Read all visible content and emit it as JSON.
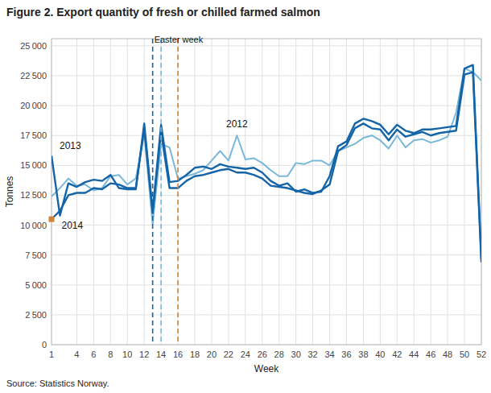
{
  "chart_data": {
    "type": "line",
    "title": "Figure 2. Export quantity of fresh or chilled farmed salmon",
    "xlabel": "Week",
    "ylabel": "Tonnes",
    "source": "Source: Statistics Norway.",
    "x": [
      1,
      2,
      3,
      4,
      5,
      6,
      7,
      8,
      9,
      10,
      11,
      12,
      13,
      14,
      15,
      16,
      17,
      18,
      19,
      20,
      21,
      22,
      23,
      24,
      25,
      26,
      27,
      28,
      29,
      30,
      31,
      32,
      33,
      34,
      35,
      36,
      37,
      38,
      39,
      40,
      41,
      42,
      43,
      44,
      45,
      46,
      47,
      48,
      49,
      50,
      51,
      52
    ],
    "series": [
      {
        "name": "2012",
        "color": "#7ab8d9",
        "values": [
          12400,
          13100,
          13900,
          13300,
          13400,
          12900,
          13100,
          14100,
          14200,
          13400,
          13900,
          17600,
          10100,
          16800,
          16500,
          13900,
          14100,
          14300,
          14600,
          15400,
          16200,
          15400,
          17500,
          15500,
          15600,
          15200,
          14600,
          14100,
          14100,
          15200,
          15100,
          15400,
          15400,
          15000,
          16200,
          16500,
          16800,
          17300,
          17500,
          17100,
          16400,
          17500,
          16500,
          17100,
          17200,
          16900,
          17100,
          17400,
          19400,
          23100,
          22800,
          22100
        ]
      },
      {
        "name": "2013",
        "color": "#1464a8",
        "values": [
          15800,
          10800,
          13500,
          13200,
          13600,
          13800,
          13700,
          14200,
          13100,
          13000,
          13000,
          18500,
          11200,
          18400,
          13600,
          13700,
          14200,
          14800,
          14900,
          14700,
          15100,
          14900,
          14800,
          14700,
          14800,
          14400,
          13700,
          13300,
          13500,
          12800,
          13000,
          12700,
          12800,
          14100,
          16600,
          17000,
          18500,
          18900,
          18700,
          18400,
          17600,
          18400,
          17900,
          17700,
          18000,
          18000,
          18100,
          18200,
          18300,
          23100,
          23400,
          7200
        ]
      },
      {
        "name": "2014",
        "color": "#1464a8",
        "values": [
          10500,
          11200,
          12500,
          12700,
          12700,
          13100,
          13000,
          13500,
          13400,
          13100,
          13100,
          18100,
          11000,
          17800,
          13100,
          13100,
          13700,
          14100,
          14200,
          14400,
          14600,
          14700,
          14400,
          14400,
          14200,
          13900,
          13300,
          13200,
          13100,
          12900,
          12700,
          12600,
          12900,
          13400,
          16200,
          16700,
          18100,
          18500,
          18100,
          18000,
          17100,
          18000,
          17400,
          17600,
          17800,
          17500,
          17700,
          17800,
          17900,
          22600,
          22800,
          6900
        ]
      }
    ],
    "vlines": [
      {
        "x": 13,
        "color": "#1464a8",
        "line_style": "dashed"
      },
      {
        "x": 14,
        "color": "#7ab8d9",
        "line_style": "dashed"
      },
      {
        "x": 16,
        "color": "#d4813a",
        "line_style": "dashed"
      }
    ],
    "highlight": {
      "series": "2014",
      "x": 1,
      "color": "#d4813a",
      "marker": "square"
    },
    "annotations": [
      {
        "text": "Easter week",
        "x": 13,
        "y": 25000
      }
    ],
    "xlim": [
      1,
      52
    ],
    "ylim": [
      0,
      25600
    ],
    "xticks": [
      1,
      4,
      6,
      8,
      10,
      12,
      14,
      16,
      18,
      20,
      22,
      24,
      26,
      28,
      30,
      32,
      34,
      36,
      38,
      40,
      42,
      44,
      46,
      48,
      50,
      52
    ],
    "yticks": [
      0,
      {
        "value": 2500,
        "label": "2 500"
      },
      {
        "value": 5000,
        "label": "5 000"
      },
      {
        "value": 7500,
        "label": "7 500"
      },
      {
        "value": 10000,
        "label": "10 000"
      },
      {
        "value": 12500,
        "label": "12 500"
      },
      {
        "value": 15000,
        "label": "15 000"
      },
      {
        "value": 17500,
        "label": "17 500"
      },
      {
        "value": 20000,
        "label": "20 000"
      },
      {
        "value": 22500,
        "label": "22 500"
      },
      {
        "value": 25000,
        "label": "25 000"
      }
    ],
    "grid": true
  }
}
